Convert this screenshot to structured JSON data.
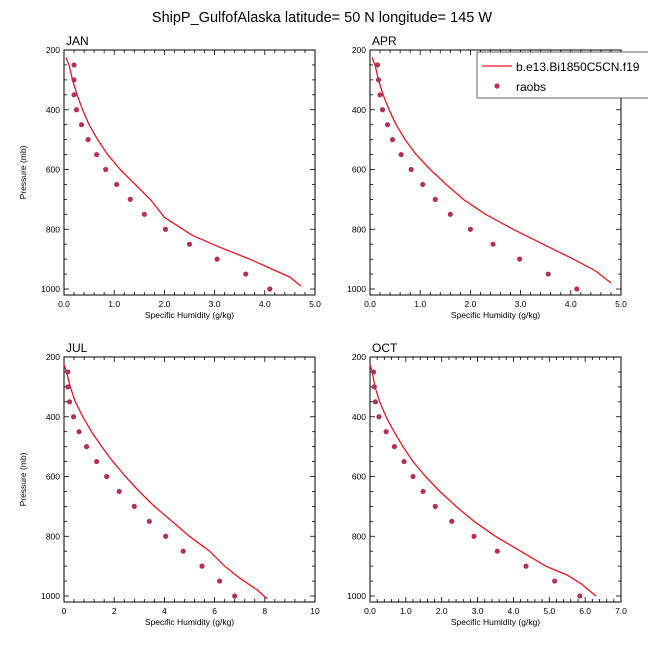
{
  "figure": {
    "title": "ShipP_GulfofAlaska  latitude= 50 N longitude= 145 W"
  },
  "legend": {
    "model_label": "b.e13.Bi1850C5CN.f19",
    "obs_label": "raobs",
    "model_color": "#e8141e",
    "obs_color": "#b3305a"
  },
  "chart_data": [
    {
      "type": "line",
      "panel": "JAN",
      "xlabel": "Specific Humidity (g/kg)",
      "ylabel": "Pressure (mb)",
      "xlim": [
        0,
        5
      ],
      "ylim": [
        200,
        1020
      ],
      "y_inverted": true,
      "xticks": [
        0,
        1,
        2,
        3,
        4,
        5
      ],
      "xticklabels": [
        "0.0",
        "1.0",
        "2.0",
        "3.0",
        "4.0",
        "5.0"
      ],
      "yticks": [
        200,
        400,
        600,
        800,
        1000
      ],
      "yticklabels": [
        "200",
        "400",
        "600",
        "800",
        "1000"
      ],
      "series": [
        {
          "name": "b.e13.Bi1850C5CN.f19",
          "style": "line",
          "x": [
            0.04,
            0.1,
            0.17,
            0.26,
            0.37,
            0.5,
            0.67,
            0.87,
            1.12,
            1.42,
            1.72,
            2.0,
            2.55,
            3.1,
            3.7,
            4.1,
            4.5,
            4.72
          ],
          "y": [
            225,
            250,
            300,
            350,
            400,
            450,
            500,
            550,
            600,
            650,
            700,
            760,
            820,
            860,
            900,
            930,
            960,
            990
          ]
        },
        {
          "name": "raobs",
          "style": "points",
          "x": [
            0.2,
            0.2,
            0.2,
            0.25,
            0.35,
            0.48,
            0.65,
            0.83,
            1.05,
            1.32,
            1.6,
            2.02,
            2.5,
            3.05,
            3.62,
            4.1
          ],
          "y": [
            250,
            300,
            350,
            400,
            450,
            500,
            550,
            600,
            650,
            700,
            750,
            800,
            850,
            900,
            950,
            1000
          ]
        }
      ]
    },
    {
      "type": "line",
      "panel": "APR",
      "xlabel": "Specific Humidity (g/kg)",
      "ylabel": "",
      "xlim": [
        0,
        5
      ],
      "ylim": [
        200,
        1020
      ],
      "y_inverted": true,
      "xticks": [
        0,
        1,
        2,
        3,
        4,
        5
      ],
      "xticklabels": [
        "0.0",
        "1.0",
        "2.0",
        "3.0",
        "4.0",
        "5.0"
      ],
      "yticks": [
        200,
        400,
        600,
        800,
        1000
      ],
      "yticklabels": [
        "200",
        "400",
        "600",
        "800",
        "1000"
      ],
      "series": [
        {
          "name": "b.e13.Bi1850C5CN.f19",
          "style": "line",
          "x": [
            0.04,
            0.1,
            0.17,
            0.26,
            0.38,
            0.52,
            0.7,
            0.92,
            1.2,
            1.52,
            1.86,
            2.3,
            2.85,
            3.45,
            4.05,
            4.5,
            4.8
          ],
          "y": [
            225,
            250,
            300,
            350,
            400,
            450,
            500,
            550,
            600,
            650,
            700,
            750,
            800,
            850,
            900,
            940,
            980
          ]
        },
        {
          "name": "raobs",
          "style": "points",
          "x": [
            0.15,
            0.17,
            0.2,
            0.25,
            0.35,
            0.45,
            0.62,
            0.82,
            1.05,
            1.3,
            1.6,
            2.0,
            2.45,
            2.98,
            3.55,
            4.12
          ],
          "y": [
            250,
            300,
            350,
            400,
            450,
            500,
            550,
            600,
            650,
            700,
            750,
            800,
            850,
            900,
            950,
            1000
          ]
        }
      ]
    },
    {
      "type": "line",
      "panel": "JUL",
      "xlabel": "Specific Humidity (g/kg)",
      "ylabel": "Pressure (mb)",
      "xlim": [
        0,
        10
      ],
      "ylim": [
        200,
        1020
      ],
      "y_inverted": true,
      "xticks": [
        0,
        2,
        4,
        6,
        8,
        10
      ],
      "xticklabels": [
        "0",
        "2",
        "4",
        "6",
        "8",
        "10"
      ],
      "yticks": [
        200,
        400,
        600,
        800,
        1000
      ],
      "yticklabels": [
        "200",
        "400",
        "600",
        "800",
        "1000"
      ],
      "series": [
        {
          "name": "b.e13.Bi1850C5CN.f19",
          "style": "line",
          "x": [
            0.0,
            0.1,
            0.25,
            0.45,
            0.75,
            1.1,
            1.5,
            1.95,
            2.45,
            3.0,
            3.6,
            4.3,
            5.0,
            5.8,
            6.4,
            7.0,
            7.7,
            8.1
          ],
          "y": [
            225,
            250,
            300,
            350,
            400,
            450,
            500,
            550,
            600,
            650,
            700,
            750,
            800,
            850,
            900,
            940,
            980,
            1010
          ]
        },
        {
          "name": "raobs",
          "style": "points",
          "x": [
            0.15,
            0.15,
            0.22,
            0.38,
            0.6,
            0.9,
            1.3,
            1.7,
            2.2,
            2.8,
            3.4,
            4.05,
            4.75,
            5.5,
            6.2,
            6.8
          ],
          "y": [
            250,
            300,
            350,
            400,
            450,
            500,
            550,
            600,
            650,
            700,
            750,
            800,
            850,
            900,
            950,
            1000
          ]
        }
      ]
    },
    {
      "type": "line",
      "panel": "OCT",
      "xlabel": "Specific Humidity (g/kg)",
      "ylabel": "",
      "xlim": [
        0,
        7
      ],
      "ylim": [
        200,
        1020
      ],
      "y_inverted": true,
      "xticks": [
        0,
        1,
        2,
        3,
        4,
        5,
        6,
        7
      ],
      "xticklabels": [
        "0.0",
        "1.0",
        "2.0",
        "3.0",
        "4.0",
        "5.0",
        "6.0",
        "7.0"
      ],
      "yticks": [
        200,
        400,
        600,
        800,
        1000
      ],
      "yticklabels": [
        "200",
        "400",
        "600",
        "800",
        "1000"
      ],
      "series": [
        {
          "name": "b.e13.Bi1850C5CN.f19",
          "style": "line",
          "x": [
            0.0,
            0.06,
            0.14,
            0.27,
            0.45,
            0.67,
            0.92,
            1.2,
            1.55,
            1.95,
            2.4,
            2.9,
            3.5,
            4.2,
            4.9,
            5.5,
            5.9,
            6.3
          ],
          "y": [
            225,
            250,
            300,
            350,
            400,
            450,
            500,
            550,
            600,
            650,
            700,
            750,
            800,
            850,
            900,
            930,
            960,
            1000
          ]
        },
        {
          "name": "raobs",
          "style": "points",
          "x": [
            0.1,
            0.12,
            0.15,
            0.25,
            0.45,
            0.68,
            0.95,
            1.2,
            1.48,
            1.82,
            2.28,
            2.9,
            3.55,
            4.35,
            5.15,
            5.85
          ],
          "y": [
            250,
            300,
            350,
            400,
            450,
            500,
            550,
            600,
            650,
            700,
            750,
            800,
            850,
            900,
            950,
            1000
          ]
        }
      ]
    }
  ]
}
